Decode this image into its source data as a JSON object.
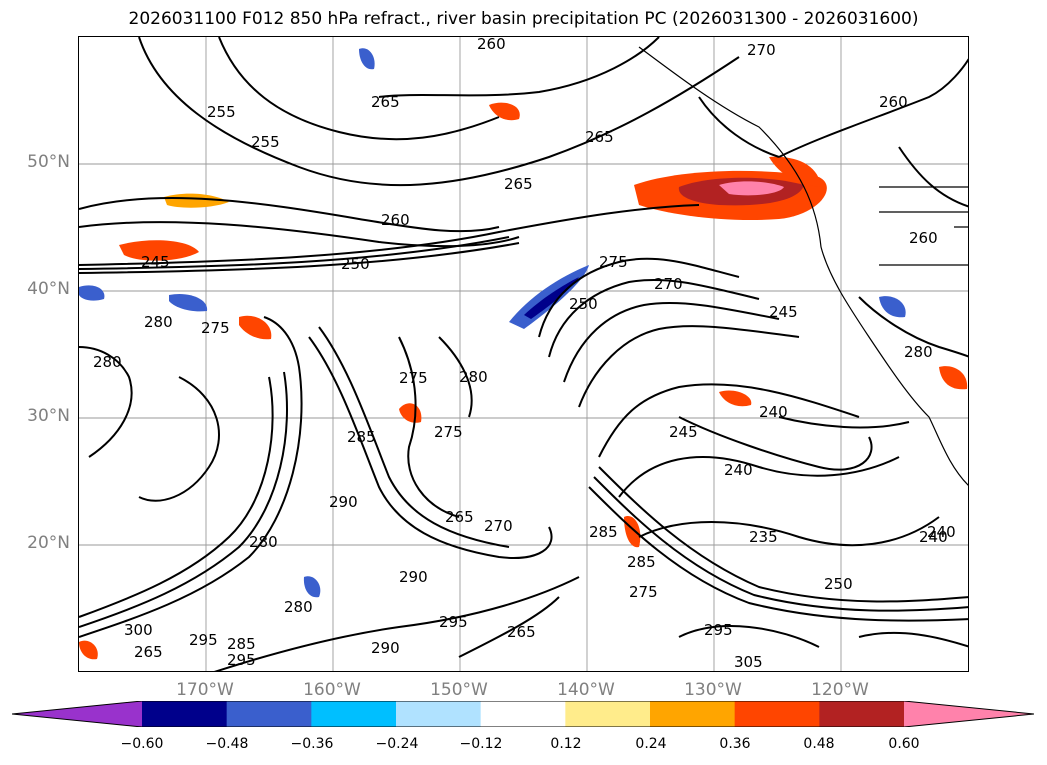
{
  "title": "2026031100 F012 850 hPa refract., river basin precipitation PC (2026031300 - 2026031600)",
  "lat_labels": [
    "50°N",
    "40°N",
    "30°N",
    "20°N"
  ],
  "lon_labels": [
    "170°W",
    "160°W",
    "150°W",
    "140°W",
    "130°W",
    "120°W"
  ],
  "colorbar": {
    "ticks": [
      "−0.60",
      "−0.48",
      "−0.36",
      "−0.24",
      "−0.12",
      "0.12",
      "0.24",
      "0.36",
      "0.48",
      "0.60"
    ],
    "colors": [
      "#9932CC",
      "#00008B",
      "#3A5FCD",
      "#00BFFF",
      "#B0E2FF",
      "#FFFFFF",
      "#FFEC8B",
      "#FFA500",
      "#FF4500",
      "#B22222",
      "#FF82AB"
    ]
  },
  "contour_labels": [
    "260",
    "270",
    "265",
    "265",
    "260",
    "255",
    "255",
    "265",
    "260",
    "245",
    "250",
    "275",
    "270",
    "260",
    "280",
    "275",
    "280",
    "250",
    "245",
    "280",
    "275",
    "240",
    "245",
    "240",
    "285",
    "275",
    "265",
    "270",
    "285",
    "235",
    "240",
    "280",
    "290",
    "295",
    "285",
    "295",
    "280",
    "300",
    "265",
    "295",
    "290",
    "265",
    "285",
    "295",
    "250",
    "275",
    "305",
    "240",
    "280",
    "290"
  ]
}
